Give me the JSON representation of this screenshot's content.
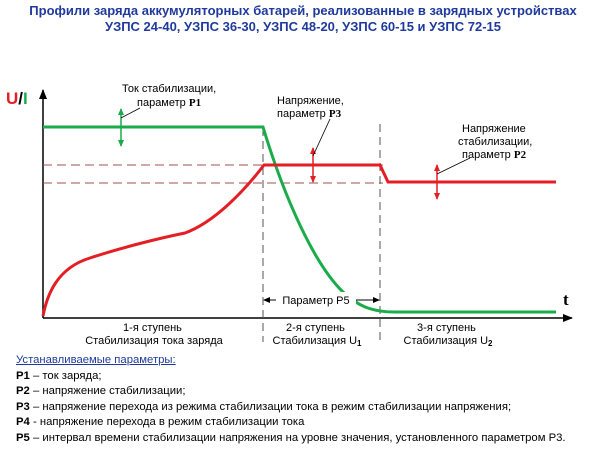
{
  "title": {
    "line1": "Профили заряда аккумуляторных батарей, реализованные в зарядных устройствах",
    "line2": "УЗПС 24-40, УЗПС 36-30, УЗПС 48-20, УЗПС 60-15 и УЗПС 72-15"
  },
  "axes": {
    "y_label_u": "U",
    "y_label_sep": "/",
    "y_label_i": "I",
    "x_label": "t"
  },
  "annotations": {
    "p1_line1": "Ток стабилизации,",
    "p1_line2": "параметр",
    "p1_code": "P1",
    "p3_line1": "Напряжение,",
    "p3_line2": "параметр",
    "p3_code": "P3",
    "p2_line1": "Напряжение",
    "p2_line2": "стабилизации,",
    "p2_line3": "параметр",
    "p2_code": "P2",
    "p5": "Параметр Р5"
  },
  "stages": [
    {
      "line1": "1-я ступень",
      "line2": "Стабилизация тока заряда",
      "sub": ""
    },
    {
      "line1": "2-я ступень",
      "line2": "Стабилизация U",
      "sub": "1"
    },
    {
      "line1": "3-я ступень",
      "line2": "Стабилизация U",
      "sub": "2"
    }
  ],
  "params": {
    "heading": "Устанавливаемые параметры:",
    "items": [
      {
        "code": "P1",
        "text": " – ток заряда;"
      },
      {
        "code": "P2",
        "text": " – напряжение стабилизации;"
      },
      {
        "code": "P3",
        "text": " – напряжение перехода из режима стабилизации тока в режим стабилизации напряжения;"
      },
      {
        "code": "P4",
        "text": " - напряжение перехода в  режим стабилизации тока"
      },
      {
        "code": "P5",
        "text": " – интервал времени стабилизации напряжения на уровне значения, установленного параметром Р3."
      }
    ]
  },
  "colors": {
    "current": "#1aab4b",
    "voltage": "#e31e24",
    "title": "#1f3a9c",
    "grid": "#a05050"
  }
}
